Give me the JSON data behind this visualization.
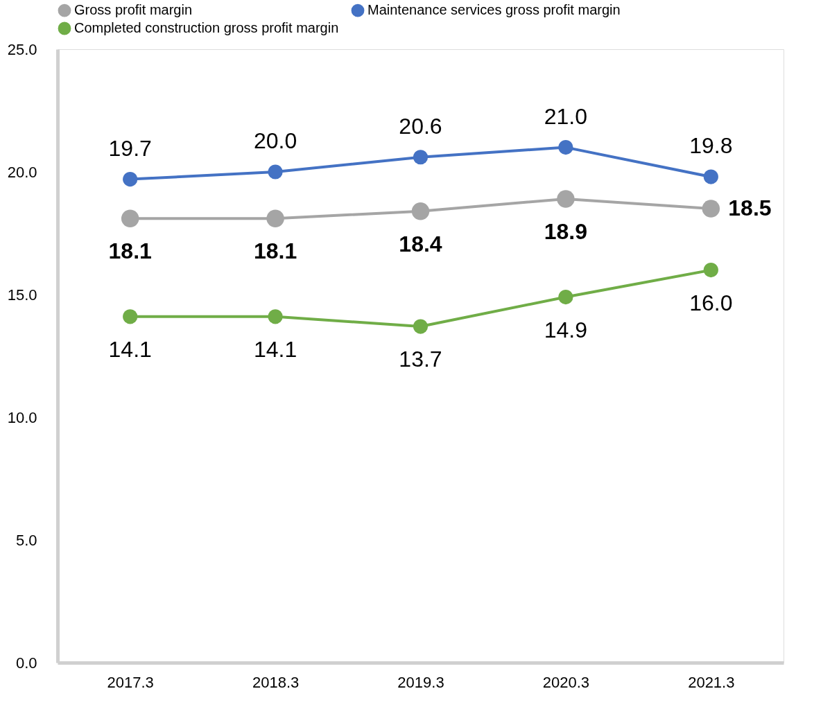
{
  "chart_data": {
    "type": "line",
    "categories": [
      "2017.3",
      "2018.3",
      "2019.3",
      "2020.3",
      "2021.3"
    ],
    "series": [
      {
        "name": "Gross profit margin",
        "color": "#a5a5a5",
        "values": [
          18.1,
          18.1,
          18.4,
          18.9,
          18.5
        ],
        "value_labels": [
          "18.1",
          "18.1",
          "18.4",
          "18.9",
          "18.5"
        ]
      },
      {
        "name": "Maintenance services gross profit margin",
        "color": "#4472c4",
        "values": [
          19.7,
          20.0,
          20.6,
          21.0,
          19.8
        ],
        "value_labels": [
          "19.7",
          "20.0",
          "20.6",
          "21.0",
          "19.8"
        ]
      },
      {
        "name": "Completed construction gross profit margin",
        "color": "#70ad47",
        "values": [
          14.1,
          14.1,
          13.7,
          14.9,
          16.0
        ],
        "value_labels": [
          "14.1",
          "14.1",
          "13.7",
          "14.9",
          "16.0"
        ]
      }
    ],
    "ylim": [
      0,
      25
    ],
    "yticks": [
      {
        "value": 0,
        "label": "0.0"
      },
      {
        "value": 5,
        "label": "5.0"
      },
      {
        "value": 10,
        "label": "10.0"
      },
      {
        "value": 15,
        "label": "15.0"
      },
      {
        "value": 20,
        "label": "20.0"
      },
      {
        "value": 25,
        "label": "25.0"
      }
    ],
    "grid": false,
    "legend": "top",
    "marker": "circle",
    "line_style": "solid"
  }
}
